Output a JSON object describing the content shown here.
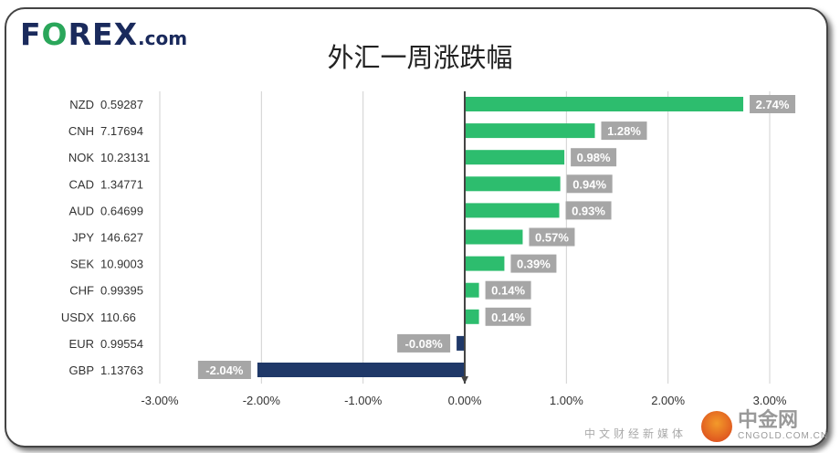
{
  "logo": {
    "brand": "FOREX",
    "suffix": ".com"
  },
  "watermark": {
    "name": "中金网",
    "site": "CNGOLD.COM.CN",
    "tagline": "中文财经新媒体"
  },
  "chart_data": {
    "type": "bar",
    "orientation": "horizontal",
    "title": "外汇一周涨跌幅",
    "categories": [
      "NZD  0.59287",
      "CNH  7.17694",
      "NOK  10.23131",
      "CAD  1.34771",
      "AUD  0.64699",
      "JPY  146.627",
      "SEK  10.9003",
      "CHF  0.99395",
      "USDX  110.66",
      "EUR  0.99554",
      "GBP  1.13763"
    ],
    "values": [
      2.74,
      1.28,
      0.98,
      0.94,
      0.93,
      0.57,
      0.39,
      0.14,
      0.14,
      -0.08,
      -2.04
    ],
    "data_labels": [
      "2.74%",
      "1.28%",
      "0.98%",
      "0.94%",
      "0.93%",
      "0.57%",
      "0.39%",
      "0.14%",
      "0.14%",
      "-0.08%",
      "-2.04%"
    ],
    "xlim": [
      -3,
      3
    ],
    "xticks": [
      "-3.00%",
      "-2.00%",
      "-1.00%",
      "0.00%",
      "1.00%",
      "2.00%",
      "3.00%"
    ],
    "grid": true,
    "colors": {
      "positive": "#2dbd6e",
      "negative": "#1f3868",
      "label_bg": "#a6a6a6"
    }
  }
}
